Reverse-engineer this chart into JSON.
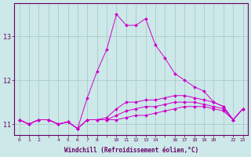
{
  "xlabel": "Windchill (Refroidissement éolien,°C)",
  "background_color": "#cce8e8",
  "grid_color": "#aacccc",
  "line_color": "#cc00cc",
  "xtick_labels": [
    "0",
    "1",
    "2",
    "",
    "4",
    "5",
    "6",
    "7",
    "8",
    "",
    "10",
    "11",
    "12",
    "13",
    "14",
    "",
    "16",
    "17",
    "18",
    "19",
    "20",
    "",
    "22",
    "23"
  ],
  "xtick_positions": [
    0,
    1,
    2,
    3,
    4,
    5,
    6,
    7,
    8,
    9,
    10,
    11,
    12,
    13,
    14,
    15,
    16,
    17,
    18,
    19,
    20,
    21,
    22,
    23
  ],
  "ylim": [
    10.75,
    13.75
  ],
  "yticks": [
    11,
    12,
    13
  ],
  "series": [
    [
      11.1,
      11.0,
      11.1,
      11.1,
      11.0,
      11.05,
      10.9,
      11.1,
      11.1,
      11.1,
      11.1,
      11.15,
      11.2,
      11.2,
      11.25,
      11.3,
      11.35,
      11.4,
      11.4,
      11.4,
      11.35,
      11.3,
      11.1,
      11.35
    ],
    [
      11.1,
      11.0,
      11.1,
      11.1,
      11.0,
      11.05,
      10.9,
      11.1,
      11.1,
      11.1,
      11.2,
      11.3,
      11.35,
      11.4,
      11.4,
      11.45,
      11.5,
      11.5,
      11.5,
      11.45,
      11.4,
      11.35,
      11.1,
      11.35
    ],
    [
      11.1,
      11.0,
      11.1,
      11.1,
      11.0,
      11.05,
      10.9,
      11.1,
      11.1,
      11.15,
      11.35,
      11.5,
      11.5,
      11.55,
      11.55,
      11.6,
      11.65,
      11.65,
      11.6,
      11.55,
      11.5,
      11.4,
      11.1,
      11.35
    ],
    [
      11.1,
      11.0,
      11.1,
      11.1,
      11.0,
      11.05,
      10.9,
      11.6,
      12.2,
      12.7,
      13.5,
      13.25,
      13.25,
      13.4,
      12.8,
      12.5,
      12.15,
      12.0,
      11.85,
      11.75,
      11.5,
      11.4,
      11.1,
      11.35
    ]
  ],
  "marker": "D",
  "markersize": 2.0,
  "linewidth": 0.7,
  "figsize": [
    3.2,
    2.0
  ],
  "dpi": 100
}
